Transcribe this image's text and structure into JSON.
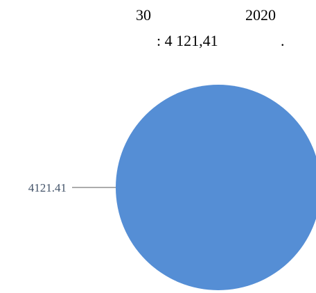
{
  "chart_data": {
    "type": "pie",
    "title_line1_a": "30",
    "title_line1_b": "2020",
    "title_line2_a": ": 4 121,41",
    "title_line2_b": ".",
    "slices": [
      {
        "value": 4121.41,
        "label": "4121.41",
        "color": "#558ed5"
      }
    ],
    "legend": "none"
  }
}
